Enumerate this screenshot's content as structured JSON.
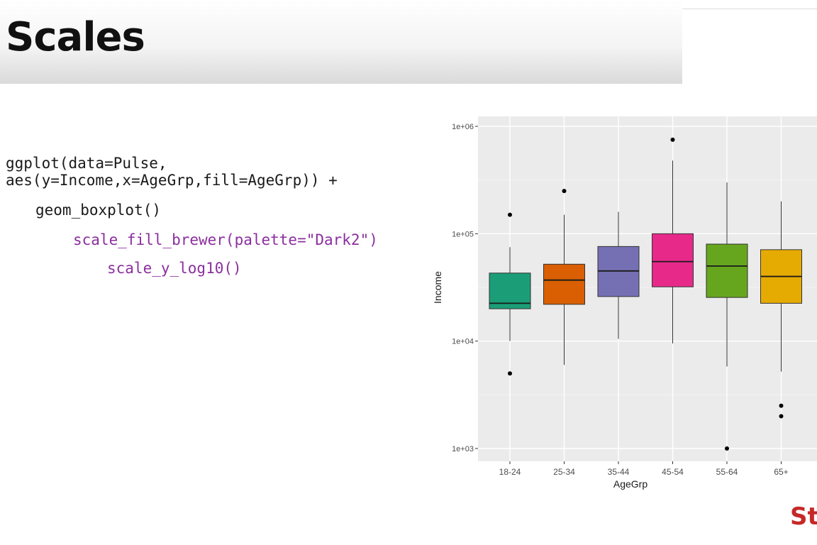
{
  "slide": {
    "title": "Scales",
    "brand": "St"
  },
  "code": {
    "line1": "ggplot(data=Pulse,",
    "line2": "aes(y=Income,x=AgeGrp,fill=AgeGrp)) +",
    "line3": "geom_boxplot()",
    "line4": "scale_fill_brewer(palette=\"Dark2\")",
    "line5": "scale_y_log10()"
  },
  "colors": {
    "code_black": "#1a1a1a",
    "code_purple": "#8b2f9e",
    "panel_background": "#ebebeb",
    "brand": "#c62828"
  },
  "chart_data": {
    "type": "boxplot",
    "xlabel": "AgeGrp",
    "ylabel": "Income",
    "y_scale": "log10",
    "ylim": [
      1000,
      1000000
    ],
    "y_ticks": [
      {
        "value": 1000,
        "label": "1e+03"
      },
      {
        "value": 10000,
        "label": "1e+04"
      },
      {
        "value": 100000,
        "label": "1e+05"
      },
      {
        "value": 1000000,
        "label": "1e+06"
      }
    ],
    "grid": true,
    "legend": "none",
    "categories": [
      "18-24",
      "25-34",
      "35-44",
      "45-54",
      "55-64",
      "65+"
    ],
    "boxes": [
      {
        "category": "18-24",
        "fill": "#1b9e77",
        "whisker_low": 10000,
        "q1": 20000,
        "median": 22500,
        "q3": 43000,
        "whisker_high": 75000,
        "outliers": [
          5000,
          150000
        ]
      },
      {
        "category": "25-34",
        "fill": "#d95f02",
        "whisker_low": 6000,
        "q1": 22000,
        "median": 37000,
        "q3": 52000,
        "whisker_high": 150000,
        "outliers": [
          250000
        ]
      },
      {
        "category": "35-44",
        "fill": "#7570b3",
        "whisker_low": 10500,
        "q1": 26000,
        "median": 45000,
        "q3": 76000,
        "whisker_high": 160000,
        "outliers": []
      },
      {
        "category": "45-54",
        "fill": "#e7298a",
        "whisker_low": 9500,
        "q1": 32000,
        "median": 55000,
        "q3": 100000,
        "whisker_high": 480000,
        "outliers": [
          750000
        ]
      },
      {
        "category": "55-64",
        "fill": "#66a61e",
        "whisker_low": 5800,
        "q1": 25500,
        "median": 50000,
        "q3": 80000,
        "whisker_high": 300000,
        "outliers": [
          1000
        ]
      },
      {
        "category": "65+",
        "fill": "#e6ab02",
        "whisker_low": 5200,
        "q1": 22500,
        "median": 40000,
        "q3": 71000,
        "whisker_high": 200000,
        "outliers": [
          2500,
          2000
        ]
      }
    ]
  }
}
